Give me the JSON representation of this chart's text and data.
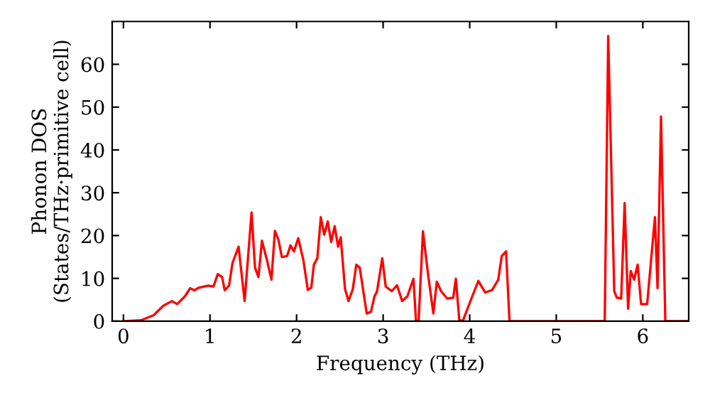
{
  "chart_data": {
    "type": "line",
    "xlabel": "Frequency (THz)",
    "ylabel": "Phonon DOS\n(States/THz·primitive cell)",
    "xlim": [
      -0.13,
      6.53
    ],
    "ylim": [
      0,
      70
    ],
    "xticks": [
      0,
      1,
      2,
      3,
      4,
      5,
      6
    ],
    "yticks": [
      0,
      10,
      20,
      30,
      40,
      50,
      60
    ],
    "grid": false,
    "marker": "none",
    "line_style": "solid",
    "series": [
      {
        "color": "#ff0000",
        "x": [
          0.0,
          0.2,
          0.35,
          0.46,
          0.56,
          0.62,
          0.71,
          0.77,
          0.82,
          0.87,
          0.98,
          1.04,
          1.09,
          1.14,
          1.17,
          1.22,
          1.26,
          1.33,
          1.4,
          1.48,
          1.52,
          1.56,
          1.6,
          1.66,
          1.71,
          1.75,
          1.79,
          1.83,
          1.89,
          1.93,
          1.97,
          2.02,
          2.08,
          2.13,
          2.17,
          2.2,
          2.24,
          2.28,
          2.32,
          2.36,
          2.4,
          2.44,
          2.48,
          2.51,
          2.56,
          2.6,
          2.65,
          2.69,
          2.73,
          2.81,
          2.86,
          2.9,
          2.93,
          2.99,
          3.03,
          3.1,
          3.16,
          3.22,
          3.28,
          3.35,
          3.38,
          3.41,
          3.46,
          3.52,
          3.58,
          3.62,
          3.67,
          3.74,
          3.81,
          3.84,
          3.88,
          3.92,
          4.02,
          4.1,
          4.18,
          4.26,
          4.33,
          4.37,
          4.42,
          4.46,
          5.56,
          5.6,
          5.67,
          5.7,
          5.75,
          5.79,
          5.83,
          5.86,
          5.9,
          5.94,
          5.98,
          6.05,
          6.14,
          6.17,
          6.21,
          6.26,
          6.53
        ],
        "values": [
          0,
          0.2,
          1.4,
          3.6,
          4.7,
          4.0,
          5.8,
          7.7,
          7.2,
          7.8,
          8.3,
          8.1,
          11,
          10.3,
          7.2,
          8.3,
          13.6,
          17.4,
          4.7,
          25.4,
          12.5,
          10.3,
          18.8,
          14.1,
          9.7,
          21.1,
          19.1,
          15,
          15.2,
          17.7,
          16.3,
          19.4,
          14.1,
          7.3,
          7.8,
          13.2,
          14.7,
          24.3,
          20.2,
          23.3,
          18.5,
          22.2,
          17.4,
          19.6,
          7.5,
          4.7,
          7.5,
          13.2,
          12.5,
          1.8,
          2.2,
          5.8,
          7,
          14.7,
          8.1,
          7,
          8.4,
          4.7,
          5.8,
          9.9,
          0,
          0,
          21,
          10.8,
          1.8,
          9.2,
          7,
          5.3,
          5.5,
          9.9,
          0.3,
          0,
          5.3,
          9.4,
          6.7,
          7.3,
          9.7,
          15.2,
          16.3,
          0,
          0,
          66.6,
          7,
          5.5,
          5.3,
          27.6,
          2.9,
          11.7,
          9.7,
          13.2,
          4,
          4,
          24.3,
          7.7,
          47.8,
          0,
          0
        ]
      }
    ]
  }
}
